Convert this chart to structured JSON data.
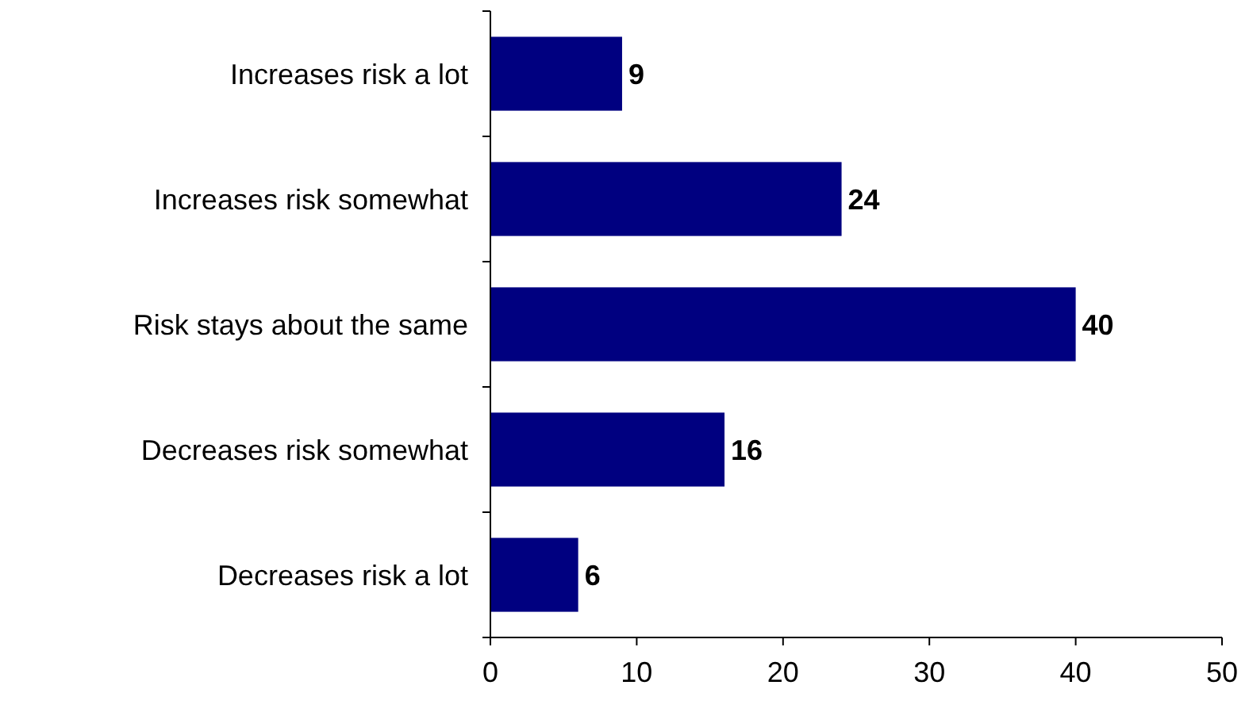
{
  "chart_data": {
    "type": "bar",
    "orientation": "horizontal",
    "categories": [
      "Increases risk a lot",
      "Increases risk somewhat",
      "Risk stays about the same",
      "Decreases risk somewhat",
      "Decreases risk a lot"
    ],
    "values": [
      9,
      24,
      40,
      16,
      6
    ],
    "color": "#000080",
    "xlim": [
      0,
      50
    ],
    "xticks": [
      0,
      10,
      20,
      30,
      40,
      50
    ],
    "data_labels": true
  }
}
